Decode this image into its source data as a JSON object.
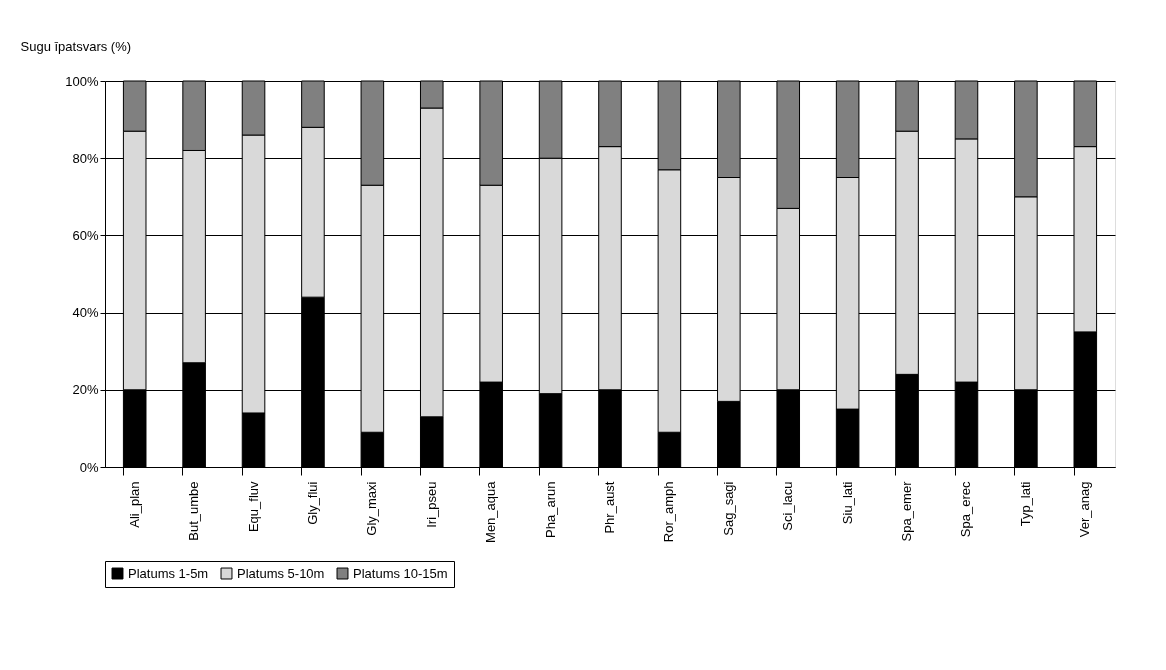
{
  "chart_data": {
    "type": "bar",
    "stacked": true,
    "ylabel": "Sugu īpatsvars (%)",
    "categories": [
      "Ali_plan",
      "But_umbe",
      "Equ_fluv",
      "Gly_flui",
      "Gly_maxi",
      "Iri_pseu",
      "Men_aqua",
      "Pha_arun",
      "Phr_aust",
      "Ror_amph",
      "Sag_sagi",
      "Sci_lacu",
      "Siu_lati",
      "Spa_emer",
      "Spa_erec",
      "Typ_lati",
      "Ver_anag"
    ],
    "series": [
      {
        "name": "Platums 1-5m",
        "color": "#000000",
        "values": [
          20,
          27,
          14,
          44,
          9,
          13,
          22,
          19,
          20,
          9,
          17,
          20,
          15,
          24,
          22,
          20,
          35
        ]
      },
      {
        "name": "Platums 5-10m",
        "color": "#d9d9d9",
        "values": [
          67,
          55,
          72,
          44,
          64,
          80,
          51,
          61,
          63,
          68,
          58,
          47,
          60,
          63,
          63,
          50,
          48
        ]
      },
      {
        "name": "Platums 10-15m",
        "color": "#808080",
        "values": [
          13,
          18,
          14,
          12,
          27,
          7,
          27,
          20,
          17,
          23,
          25,
          33,
          25,
          13,
          15,
          30,
          17
        ]
      }
    ],
    "ylim": [
      0,
      100
    ],
    "yticks": [
      {
        "value": 0,
        "label": "0%"
      },
      {
        "value": 20,
        "label": "20%"
      },
      {
        "value": 40,
        "label": "40%"
      },
      {
        "value": 60,
        "label": "60%"
      },
      {
        "value": 80,
        "label": "80%"
      },
      {
        "value": 100,
        "label": "100%"
      }
    ],
    "grid": "y",
    "legend": "bottom"
  }
}
